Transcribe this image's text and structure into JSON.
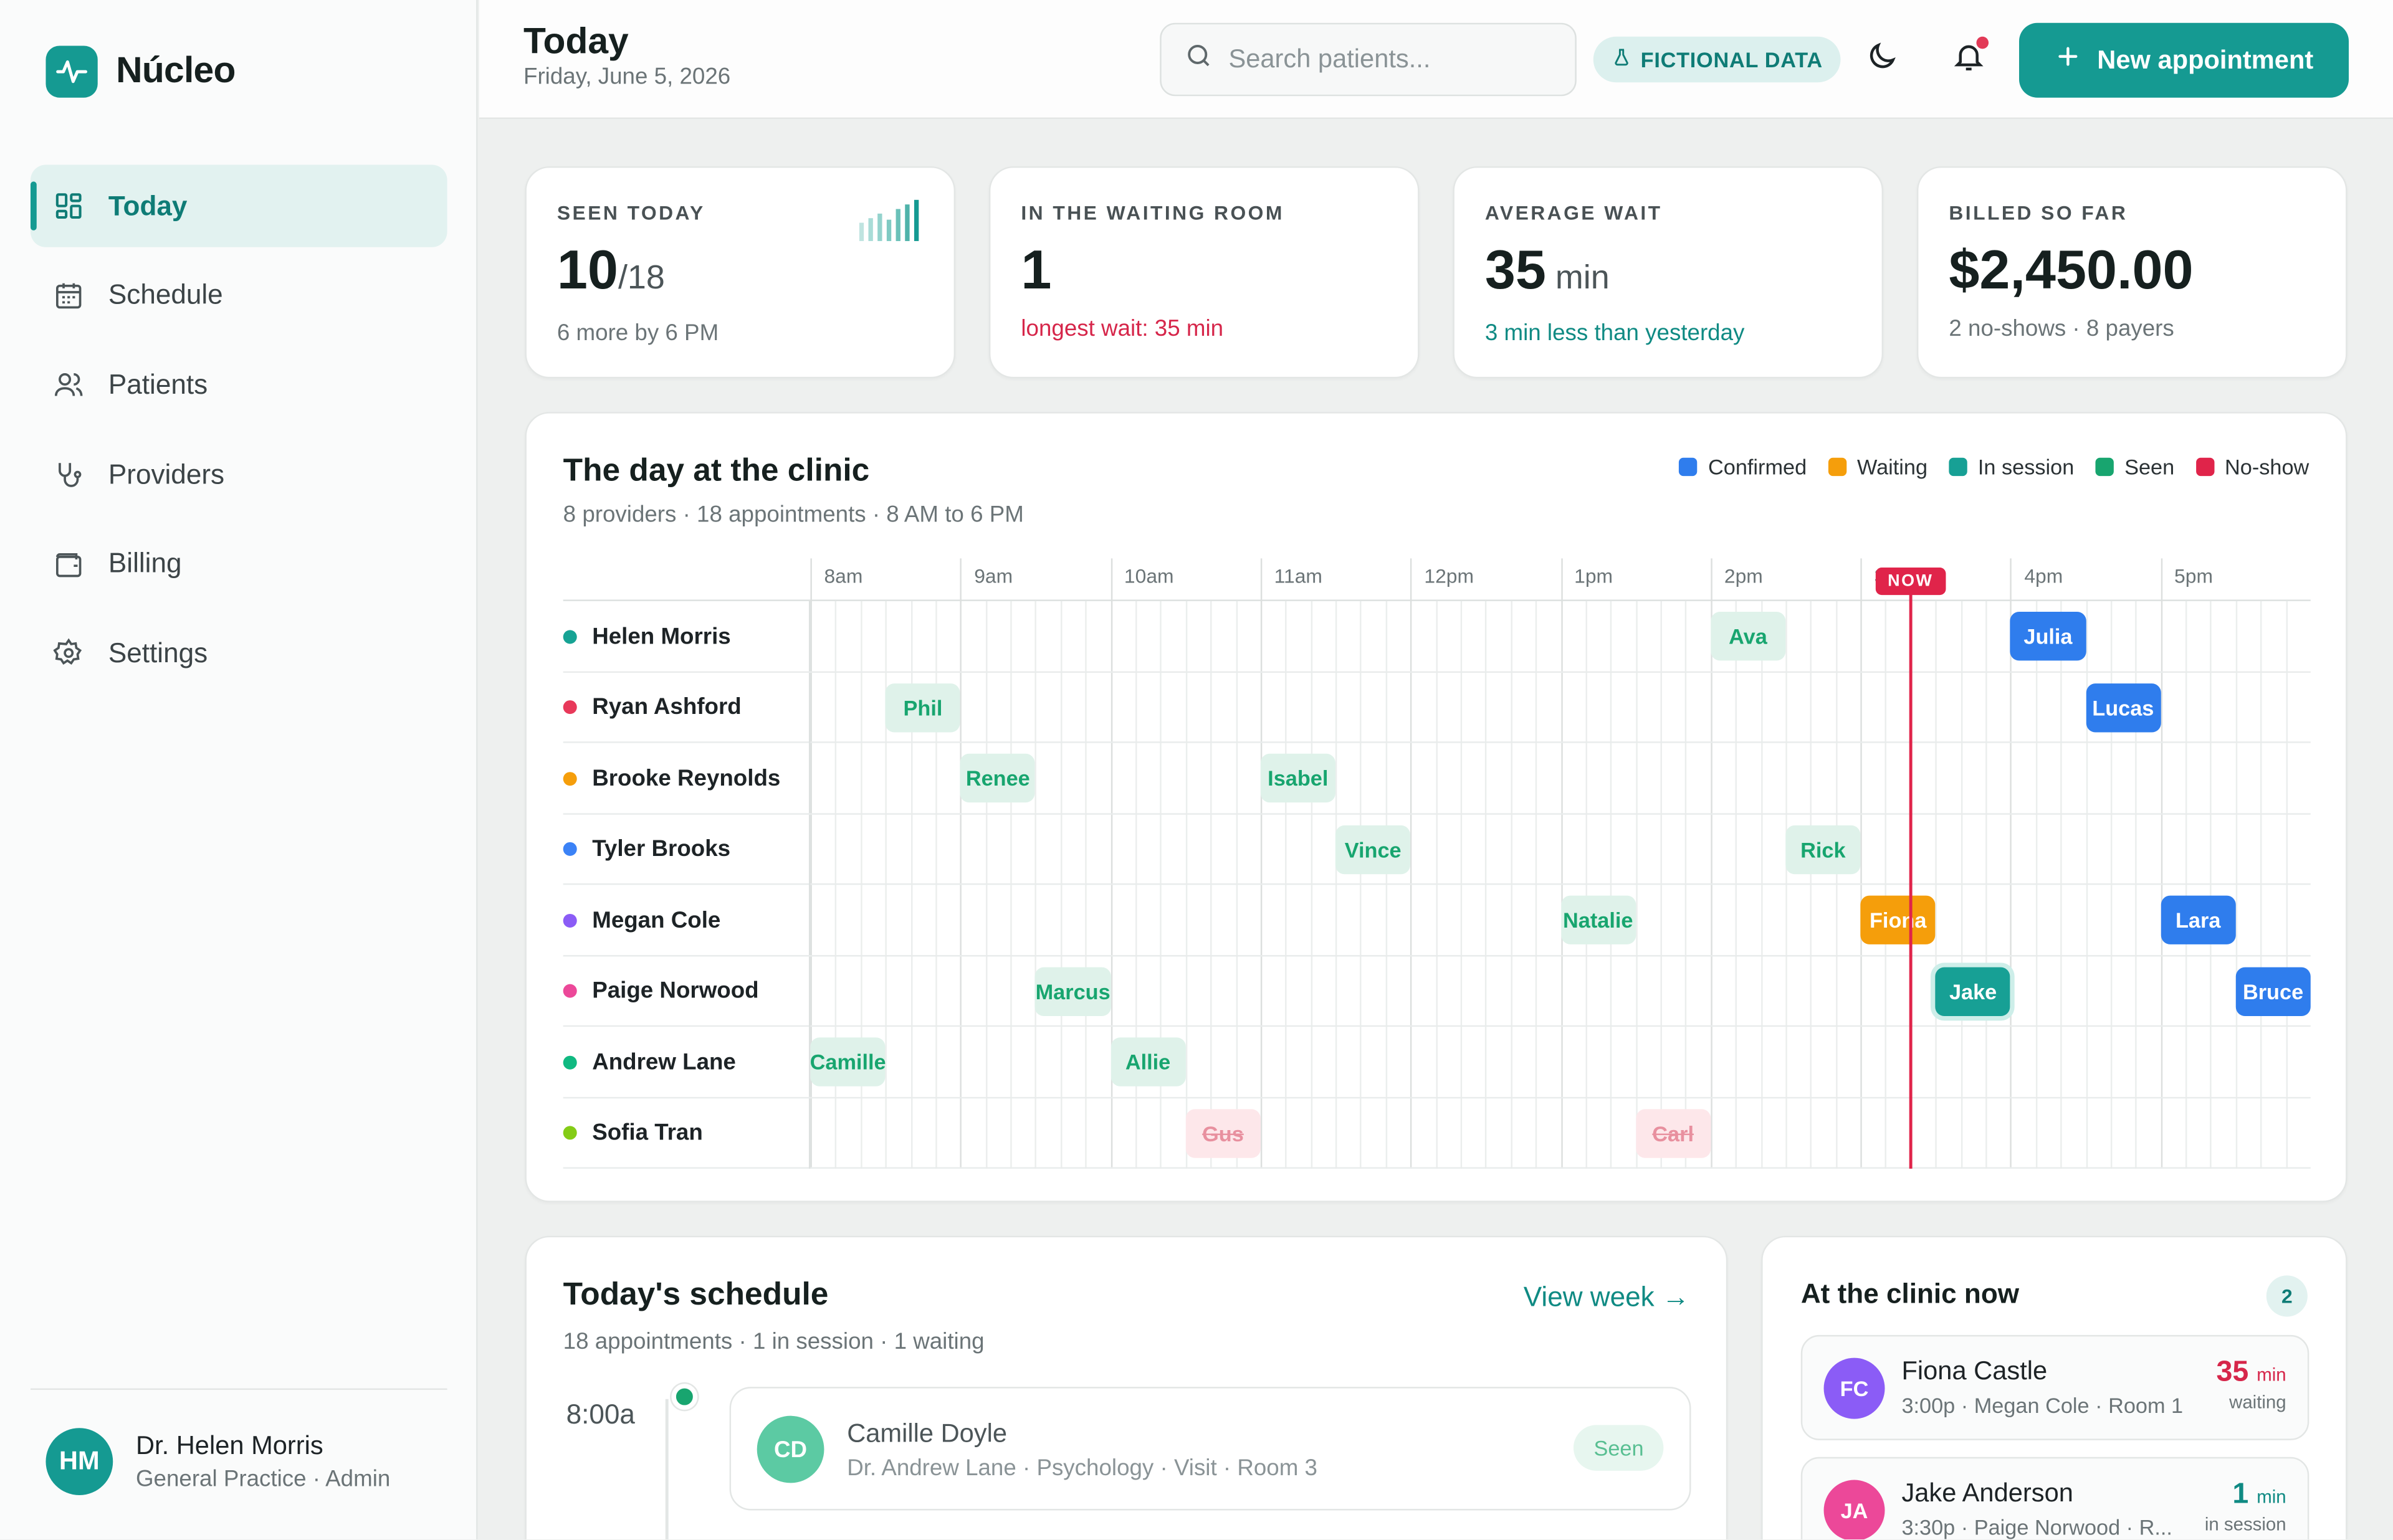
{
  "brand": {
    "name": "Núcleo"
  },
  "nav": [
    {
      "label": "Today",
      "icon": "grid-icon",
      "active": true
    },
    {
      "label": "Schedule",
      "icon": "calendar-icon"
    },
    {
      "label": "Patients",
      "icon": "users-icon"
    },
    {
      "label": "Providers",
      "icon": "stethoscope-icon"
    },
    {
      "label": "Billing",
      "icon": "wallet-icon"
    },
    {
      "label": "Settings",
      "icon": "gear-icon"
    }
  ],
  "user": {
    "initials": "HM",
    "name": "Dr. Helen Morris",
    "role": "General Practice · Admin"
  },
  "header": {
    "title": "Today",
    "date": "Friday, June 5, 2026",
    "search_placeholder": "Search patients...",
    "badge": "FICTIONAL DATA",
    "new_button": "New appointment"
  },
  "stats": [
    {
      "label": "SEEN TODAY",
      "value": "10",
      "unit": "/18",
      "sub": "6 more by 6 PM",
      "tone": "muted"
    },
    {
      "label": "IN THE WAITING ROOM",
      "value": "1",
      "unit": "",
      "sub": "longest wait: 35 min",
      "tone": "red"
    },
    {
      "label": "AVERAGE WAIT",
      "value": "35",
      "unit": " min",
      "sub": "3 min less than yesterday",
      "tone": "teal"
    },
    {
      "label": "BILLED SO FAR",
      "value": "$2,450.00",
      "unit": "",
      "sub": "2 no-shows · 8 payers",
      "tone": "muted"
    }
  ],
  "colors": {
    "accent": "#159a92",
    "confirmed": "#2f7ded",
    "waiting": "#f59e0b",
    "in_session": "#17a095",
    "seen": "#18a56f",
    "no_show": "#e0244a"
  },
  "timeline": {
    "title": "The day at the clinic",
    "subtitle": "8 providers · 18 appointments · 8 AM to 6 PM",
    "legend": [
      {
        "label": "Confirmed",
        "color": "#2f7ded"
      },
      {
        "label": "Waiting",
        "color": "#f59e0b"
      },
      {
        "label": "In session",
        "color": "#17a095"
      },
      {
        "label": "Seen",
        "color": "#18a56f"
      },
      {
        "label": "No-show",
        "color": "#e0244a"
      }
    ],
    "hours": [
      "8am",
      "9am",
      "10am",
      "11am",
      "12pm",
      "1pm",
      "2pm",
      "3pm",
      "4pm",
      "5pm"
    ],
    "now_label": "NOW",
    "now_time": "15:20",
    "providers": [
      {
        "name": "Helen Morris",
        "color": "#16a394",
        "appointments": [
          {
            "patient": "Ava",
            "start": "14:00",
            "status": "seen"
          },
          {
            "patient": "Julia",
            "start": "16:00",
            "status": "confirmed"
          }
        ]
      },
      {
        "name": "Ryan Ashford",
        "color": "#e8395a",
        "appointments": [
          {
            "patient": "Phil",
            "start": "8:30",
            "status": "seen"
          },
          {
            "patient": "Lucas",
            "start": "16:30",
            "status": "confirmed"
          }
        ]
      },
      {
        "name": "Brooke Reynolds",
        "color": "#f59e0b",
        "appointments": [
          {
            "patient": "Renee",
            "start": "9:00",
            "status": "seen"
          },
          {
            "patient": "Isabel",
            "start": "11:00",
            "status": "seen"
          }
        ]
      },
      {
        "name": "Tyler Brooks",
        "color": "#3b82f6",
        "appointments": [
          {
            "patient": "Vince",
            "start": "11:30",
            "status": "seen"
          },
          {
            "patient": "Rick",
            "start": "14:30",
            "status": "seen"
          }
        ]
      },
      {
        "name": "Megan Cole",
        "color": "#8b5cf6",
        "appointments": [
          {
            "patient": "Natalie",
            "start": "13:00",
            "status": "seen"
          },
          {
            "patient": "Fiona",
            "start": "15:00",
            "status": "waiting"
          },
          {
            "patient": "Lara",
            "start": "17:00",
            "status": "confirmed"
          }
        ]
      },
      {
        "name": "Paige Norwood",
        "color": "#ec4899",
        "appointments": [
          {
            "patient": "Marcus",
            "start": "9:30",
            "status": "seen"
          },
          {
            "patient": "Jake",
            "start": "15:30",
            "status": "session"
          },
          {
            "patient": "Bruce",
            "start": "17:30",
            "status": "confirmed"
          }
        ]
      },
      {
        "name": "Andrew Lane",
        "color": "#10b981",
        "appointments": [
          {
            "patient": "Camille",
            "start": "8:00",
            "status": "seen"
          },
          {
            "patient": "Allie",
            "start": "10:00",
            "status": "seen"
          }
        ]
      },
      {
        "name": "Sofia Tran",
        "color": "#84cc16",
        "appointments": [
          {
            "patient": "Gus",
            "start": "10:30",
            "status": "noshow"
          },
          {
            "patient": "Carl",
            "start": "13:30",
            "status": "noshow"
          }
        ]
      }
    ]
  },
  "schedule": {
    "title": "Today's schedule",
    "subtitle": "18 appointments · 1 in session · 1 waiting",
    "view_week": "View week →",
    "items": [
      {
        "time": "8:00a",
        "initials": "CD",
        "name": "Camille Doyle",
        "meta": "Dr. Andrew Lane · Psychology · Visit · Room 3",
        "status": "Seen"
      }
    ]
  },
  "clinic_now": {
    "title": "At the clinic now",
    "count": "2",
    "people": [
      {
        "initials": "FC",
        "avatar_color": "#8b5cf6",
        "name": "Fiona Castle",
        "meta": "3:00p · Megan Cole · Room 1",
        "value": "35",
        "unit": "min",
        "state": "waiting",
        "tone": "#d6264a"
      },
      {
        "initials": "JA",
        "avatar_color": "#ec4899",
        "name": "Jake Anderson",
        "meta": "3:30p · Paige Norwood · R...",
        "value": "1",
        "unit": "min",
        "state": "in session",
        "tone": "#0f8a83"
      }
    ]
  }
}
